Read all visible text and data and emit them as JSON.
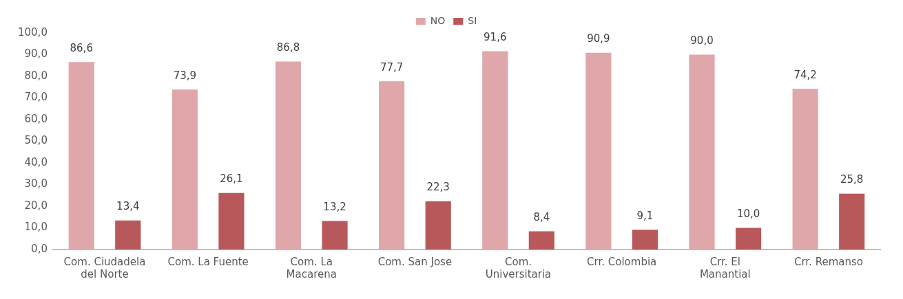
{
  "chart_data": {
    "type": "bar",
    "categories": [
      "Com. Ciudadela del Norte",
      "Com. La Fuente",
      "Com. La Macarena",
      "Com. San Jose",
      "Com. Universitaria",
      "Crr. Colombia",
      "Crr. El Manantial",
      "Crr. Remanso"
    ],
    "series": [
      {
        "name": "NO",
        "color": "#dfa7a9",
        "values": [
          86.6,
          73.9,
          86.8,
          77.7,
          91.6,
          90.9,
          90.0,
          74.2
        ],
        "value_labels": [
          "86,6",
          "73,9",
          "86,8",
          "77,7",
          "91,6",
          "90,9",
          "90,0",
          "74,2"
        ]
      },
      {
        "name": "SI",
        "color": "#b9585a",
        "values": [
          13.4,
          26.1,
          13.2,
          22.3,
          8.4,
          9.1,
          10.0,
          25.8
        ],
        "value_labels": [
          "13,4",
          "26,1",
          "13,2",
          "22,3",
          "8,4",
          "9,1",
          "10,0",
          "25,8"
        ]
      }
    ],
    "ylim": [
      0,
      100
    ],
    "yticks": [
      {
        "value": 0,
        "label": "0,0"
      },
      {
        "value": 10,
        "label": "10,0"
      },
      {
        "value": 20,
        "label": "20,0"
      },
      {
        "value": 30,
        "label": "30,0"
      },
      {
        "value": 40,
        "label": "40,0"
      },
      {
        "value": 50,
        "label": "50,0"
      },
      {
        "value": 60,
        "label": "60,0"
      },
      {
        "value": 70,
        "label": "70,0"
      },
      {
        "value": 80,
        "label": "80,0"
      },
      {
        "value": 90,
        "label": "90,0"
      },
      {
        "value": 100,
        "label": "100,0"
      }
    ],
    "grid": false,
    "legend": "top"
  }
}
